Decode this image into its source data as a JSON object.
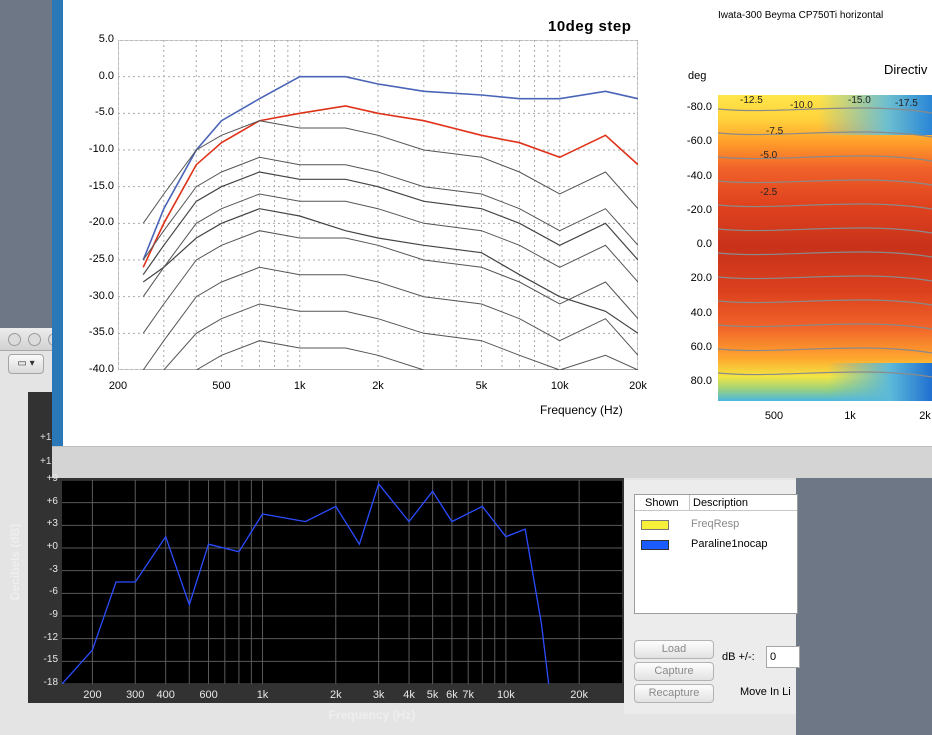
{
  "front_window": {
    "chart_title": "10deg step",
    "header_text": "Iwata-300 Beyma CP750Ti horizontal",
    "directivity_title": "Directiv",
    "x_axis_label": "Frequency (Hz)",
    "y_ticks": [
      "5.0",
      "0.0",
      "-5.0",
      "-10.0",
      "-15.0",
      "-20.0",
      "-25.0",
      "-30.0",
      "-35.0",
      "-40.0"
    ],
    "x_ticks": [
      "200",
      "500",
      "1k",
      "2k",
      "5k",
      "10k",
      "20k"
    ],
    "dir_unit": "deg",
    "dir_y_ticks": [
      "-80.0",
      "-60.0",
      "-40.0",
      "-20.0",
      "0.0",
      "20.0",
      "40.0",
      "60.0",
      "80.0"
    ],
    "dir_x_ticks": [
      "500",
      "1k",
      "2k"
    ],
    "contour_labels": [
      "-12.5",
      "-10.0",
      "-15.0",
      "-17.5",
      "-7.5",
      "-5.0",
      "-2.5"
    ]
  },
  "back_window": {
    "toolbar_button": "▾",
    "y_axis_label": "Decibels (dB)",
    "x_axis_label": "Frequency (Hz)",
    "y_ticks": [
      "+9",
      "+6",
      "+3",
      "+0",
      "-3",
      "-6",
      "-9",
      "-12",
      "-15",
      "-18"
    ],
    "partial_ticks": [
      "+1",
      "+1"
    ],
    "x_ticks": [
      "200",
      "300",
      "400",
      "600",
      "1k",
      "2k",
      "3k",
      "4k",
      "5k",
      "6k",
      "7k",
      "10k",
      "20k"
    ],
    "legend_headers": {
      "shown": "Shown",
      "description": "Description"
    },
    "legend_items": [
      {
        "label": "FreqResp",
        "color": "#f6f03a"
      },
      {
        "label": "Paraline1nocap",
        "color": "#1a5cff"
      }
    ],
    "buttons": {
      "load": "Load",
      "capture": "Capture",
      "recapture": "Recapture"
    },
    "db_label": "dB +/-:",
    "db_value": "0",
    "move_label": "Move In Li"
  },
  "colors": {
    "front_accent": "#2a78b8",
    "red_curve": "#e0321a",
    "blue_curve": "#4a64b8",
    "trace_blue": "#2a4cff"
  },
  "chart_data": [
    {
      "type": "line",
      "title": "10deg step",
      "xlabel": "Frequency (Hz)",
      "xscale": "log",
      "xlim": [
        200,
        20000
      ],
      "ylim": [
        -40,
        5
      ],
      "grid": true,
      "x": [
        250,
        300,
        400,
        500,
        700,
        1000,
        1500,
        2000,
        3000,
        5000,
        7000,
        10000,
        15000,
        20000
      ],
      "series": [
        {
          "values": [
            -25,
            -18,
            -10,
            -6,
            -3,
            0,
            0,
            -1,
            -2,
            -2.5,
            -3,
            -3,
            -2,
            -3
          ]
        },
        {
          "values": [
            -26,
            -20,
            -12,
            -9,
            -6,
            -5,
            -4,
            -5,
            -6,
            -8,
            -9,
            -11,
            -8,
            -12
          ]
        },
        {
          "values": [
            -27,
            -23,
            -17,
            -15,
            -13,
            -14,
            -14,
            -15,
            -17,
            -18,
            -20,
            -23,
            -20,
            -25
          ]
        },
        {
          "values": [
            -28,
            -26,
            -22,
            -20,
            -18,
            -19,
            -21,
            -22,
            -23,
            -24,
            -27,
            -30,
            -32,
            -35
          ]
        }
      ]
    },
    {
      "type": "line",
      "ylabel": "Decibels (dB)",
      "xlabel": "Frequency (Hz)",
      "xscale": "log",
      "xlim": [
        150,
        30000
      ],
      "ylim": [
        -18,
        9
      ],
      "grid": true,
      "x": [
        150,
        200,
        250,
        300,
        400,
        500,
        600,
        800,
        1000,
        1500,
        2000,
        2500,
        3000,
        4000,
        5000,
        6000,
        8000,
        10000,
        12000,
        14000,
        15000
      ],
      "series": [
        {
          "name": "Paraline1nocap",
          "values": [
            -18,
            -12,
            -6,
            -3,
            0,
            -6,
            -1,
            1,
            3,
            5,
            4,
            2,
            7,
            5,
            6,
            5,
            4,
            3,
            1,
            -10,
            -18
          ]
        }
      ]
    }
  ]
}
